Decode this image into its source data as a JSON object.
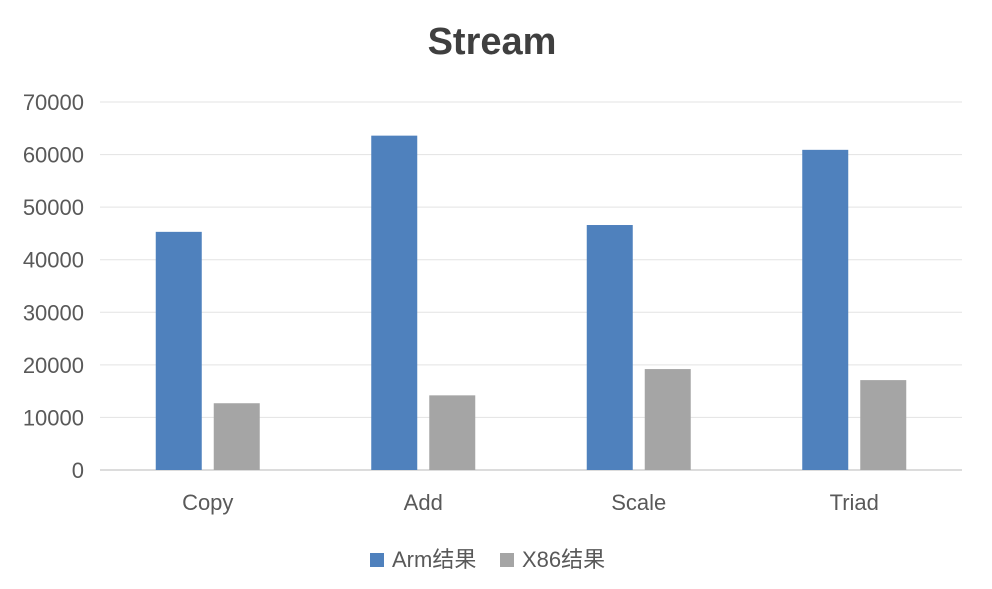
{
  "chart_data": {
    "type": "bar",
    "title": "Stream",
    "xlabel": "",
    "ylabel": "",
    "categories": [
      "Copy",
      "Add",
      "Scale",
      "Triad"
    ],
    "ylim": [
      0,
      70000
    ],
    "yticks": [
      0,
      10000,
      20000,
      30000,
      40000,
      50000,
      60000,
      70000
    ],
    "ytick_labels": [
      "0",
      "10000",
      "20000",
      "30000",
      "40000",
      "50000",
      "60000",
      "70000"
    ],
    "grid": true,
    "legend_position": "bottom",
    "series": [
      {
        "name": "Arm结果",
        "color": "#4f81bd",
        "values": [
          45300,
          63600,
          46600,
          60900
        ]
      },
      {
        "name": "X86结果",
        "color": "#a5a5a5",
        "values": [
          12700,
          14200,
          19200,
          17100
        ]
      }
    ]
  }
}
